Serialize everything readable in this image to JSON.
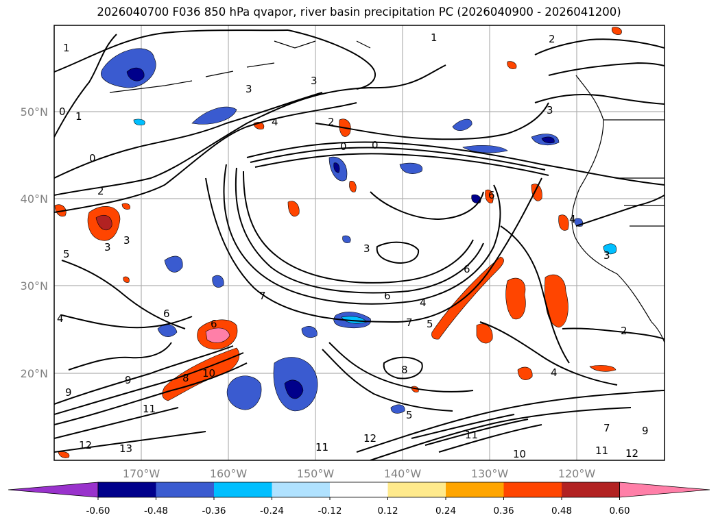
{
  "title": "2026040700 F036 850 hPa qvapor, river basin precipitation PC (2026040900 - 2026041200)",
  "map": {
    "lat_labels": [
      "50°N",
      "40°N",
      "30°N",
      "20°N"
    ],
    "lon_labels": [
      "170°W",
      "160°W",
      "150°W",
      "140°W",
      "130°W",
      "120°W"
    ],
    "contour_labels": [
      "1",
      "0",
      "1",
      "0",
      "2",
      "3",
      "5",
      "3",
      "4",
      "3",
      "2",
      "0",
      "0",
      "1",
      "2",
      "3",
      "3",
      "6",
      "6",
      "7",
      "3",
      "4",
      "6",
      "7",
      "5",
      "6",
      "6",
      "8",
      "2",
      "4",
      "3",
      "4",
      "4",
      "9",
      "9",
      "8",
      "10",
      "11",
      "12",
      "13",
      "11",
      "12",
      "5",
      "11",
      "10",
      "9",
      "7",
      "11",
      "12"
    ]
  },
  "colorbar": {
    "tick_labels": [
      "-0.60",
      "-0.48",
      "-0.36",
      "-0.24",
      "-0.12",
      "0.12",
      "0.24",
      "0.36",
      "0.48",
      "0.60"
    ],
    "colors": [
      "#9932cc",
      "#00008b",
      "#3a5bd0",
      "#00bfff",
      "#b0e2ff",
      "#ffffff",
      "#ffea8c",
      "#ffa500",
      "#ff4500",
      "#b22222",
      "#ff7fa8"
    ]
  }
}
